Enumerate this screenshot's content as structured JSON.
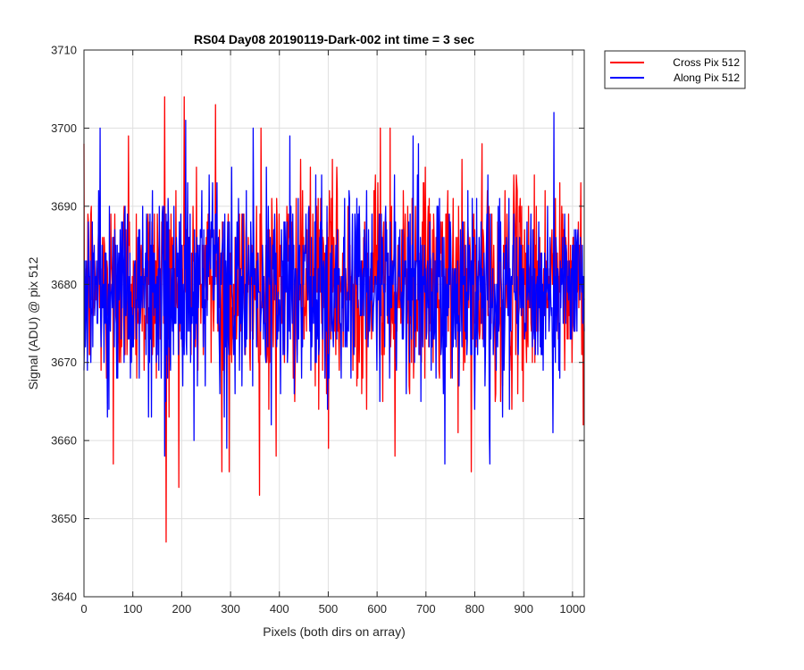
{
  "chart_data": {
    "type": "line",
    "title": "RS04 Day08 20190119-Dark-002 int time = 3 sec",
    "xlabel": "Pixels (both dirs on array)",
    "ylabel": "Signal (ADU) @ pix 512",
    "xlim": [
      0,
      1024
    ],
    "ylim": [
      3640,
      3710
    ],
    "xticks": [
      0,
      100,
      200,
      300,
      400,
      500,
      600,
      700,
      800,
      900,
      1000
    ],
    "yticks": [
      3640,
      3650,
      3660,
      3670,
      3680,
      3690,
      3700,
      3710
    ],
    "grid": true,
    "legend_position": "outside top-right",
    "series": [
      {
        "name": "Cross Pix 512",
        "color": "#ff0000",
        "noise_mean": 3680,
        "noise_range": [
          3647,
          3704
        ],
        "highlights": [
          [
            60,
            3657
          ],
          [
            91,
            3699
          ],
          [
            165,
            3704
          ],
          [
            168,
            3647
          ],
          [
            205,
            3704
          ],
          [
            269,
            3703
          ],
          [
            282,
            3656
          ],
          [
            297,
            3656
          ],
          [
            362,
            3700
          ],
          [
            393,
            3658
          ],
          [
            500,
            3659
          ],
          [
            606,
            3700
          ],
          [
            626,
            3700
          ],
          [
            636,
            3658
          ],
          [
            792,
            3656
          ]
        ],
        "n_points": 1024
      },
      {
        "name": "Along Pix 512",
        "color": "#0000ff",
        "noise_mean": 3679,
        "noise_range": [
          3657,
          3702
        ],
        "highlights": [
          [
            165,
            3658
          ],
          [
            208,
            3701
          ],
          [
            738,
            3657
          ],
          [
            830,
            3657
          ],
          [
            961,
            3702
          ]
        ],
        "n_points": 1024
      }
    ]
  }
}
